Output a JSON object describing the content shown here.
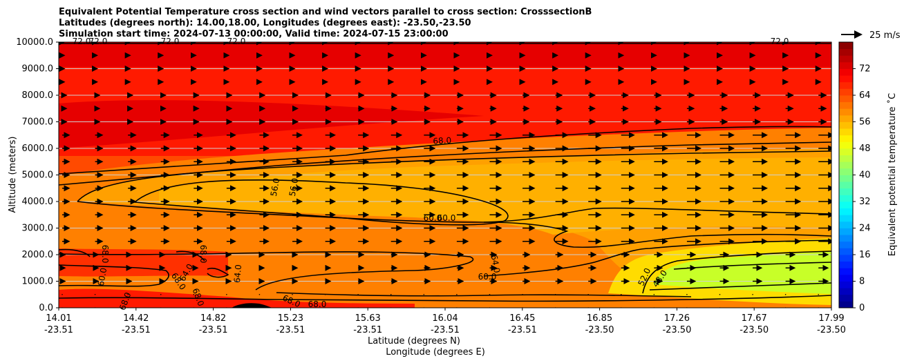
{
  "chart_data": {
    "type": "heatmap",
    "title_lines": [
      "Equivalent Potential Temperature cross section and wind vectors parallel to cross section: CrosssectionB",
      "Latitudes (degrees north): 14.00,18.00, Longitudes (degrees east): -23.50,-23.50",
      "Simulation start time: 2024-07-13 00:00:00, Valid time: 2024-07-15 23:00:00"
    ],
    "xlabel_lines": [
      "Latitude (degrees N)",
      "Longitude (degrees E)"
    ],
    "ylabel": "Altitude (meters)",
    "x_ticks": [
      {
        "lat": "14.01",
        "lon": "-23.51"
      },
      {
        "lat": "14.42",
        "lon": "-23.51"
      },
      {
        "lat": "14.82",
        "lon": "-23.51"
      },
      {
        "lat": "15.23",
        "lon": "-23.51"
      },
      {
        "lat": "15.63",
        "lon": "-23.51"
      },
      {
        "lat": "16.04",
        "lon": "-23.51"
      },
      {
        "lat": "16.45",
        "lon": "-23.51"
      },
      {
        "lat": "16.85",
        "lon": "-23.50"
      },
      {
        "lat": "17.26",
        "lon": "-23.50"
      },
      {
        "lat": "17.67",
        "lon": "-23.50"
      },
      {
        "lat": "17.99",
        "lon": "-23.50"
      }
    ],
    "y_ticks": [
      "0.0",
      "1000.0",
      "2000.0",
      "3000.0",
      "4000.0",
      "5000.0",
      "6000.0",
      "7000.0",
      "8000.0",
      "9000.0",
      "10000.0"
    ],
    "ylim": [
      0,
      10000
    ],
    "grid": "horizontal",
    "colorbar": {
      "label": "Equivalent potential temperature ˚C",
      "ticks": [
        "0",
        "8",
        "16",
        "24",
        "32",
        "40",
        "48",
        "56",
        "64",
        "72"
      ],
      "range": [
        0,
        80
      ],
      "colormap": "jet"
    },
    "quiver_key": "25 m/s",
    "contour_labels": [
      {
        "text": "72.0"
      },
      {
        "text": "72.0"
      },
      {
        "text": "72.0"
      },
      {
        "text": "72.0"
      },
      {
        "text": "72.0"
      },
      {
        "text": "68.0"
      },
      {
        "text": "56.0"
      },
      {
        "text": "56.0"
      },
      {
        "text": "60.0"
      },
      {
        "text": "60.0"
      },
      {
        "text": "60.0"
      },
      {
        "text": "64.0"
      },
      {
        "text": "52.0"
      },
      {
        "text": "48.0"
      },
      {
        "text": "68.0"
      },
      {
        "text": "68.0"
      },
      {
        "text": "60.0"
      },
      {
        "text": "64.0"
      },
      {
        "text": "68.0"
      },
      {
        "text": "64.0"
      },
      {
        "text": "68.0"
      },
      {
        "text": "68.0"
      },
      {
        "text": "68.0"
      },
      {
        "text": "68.0"
      }
    ]
  }
}
